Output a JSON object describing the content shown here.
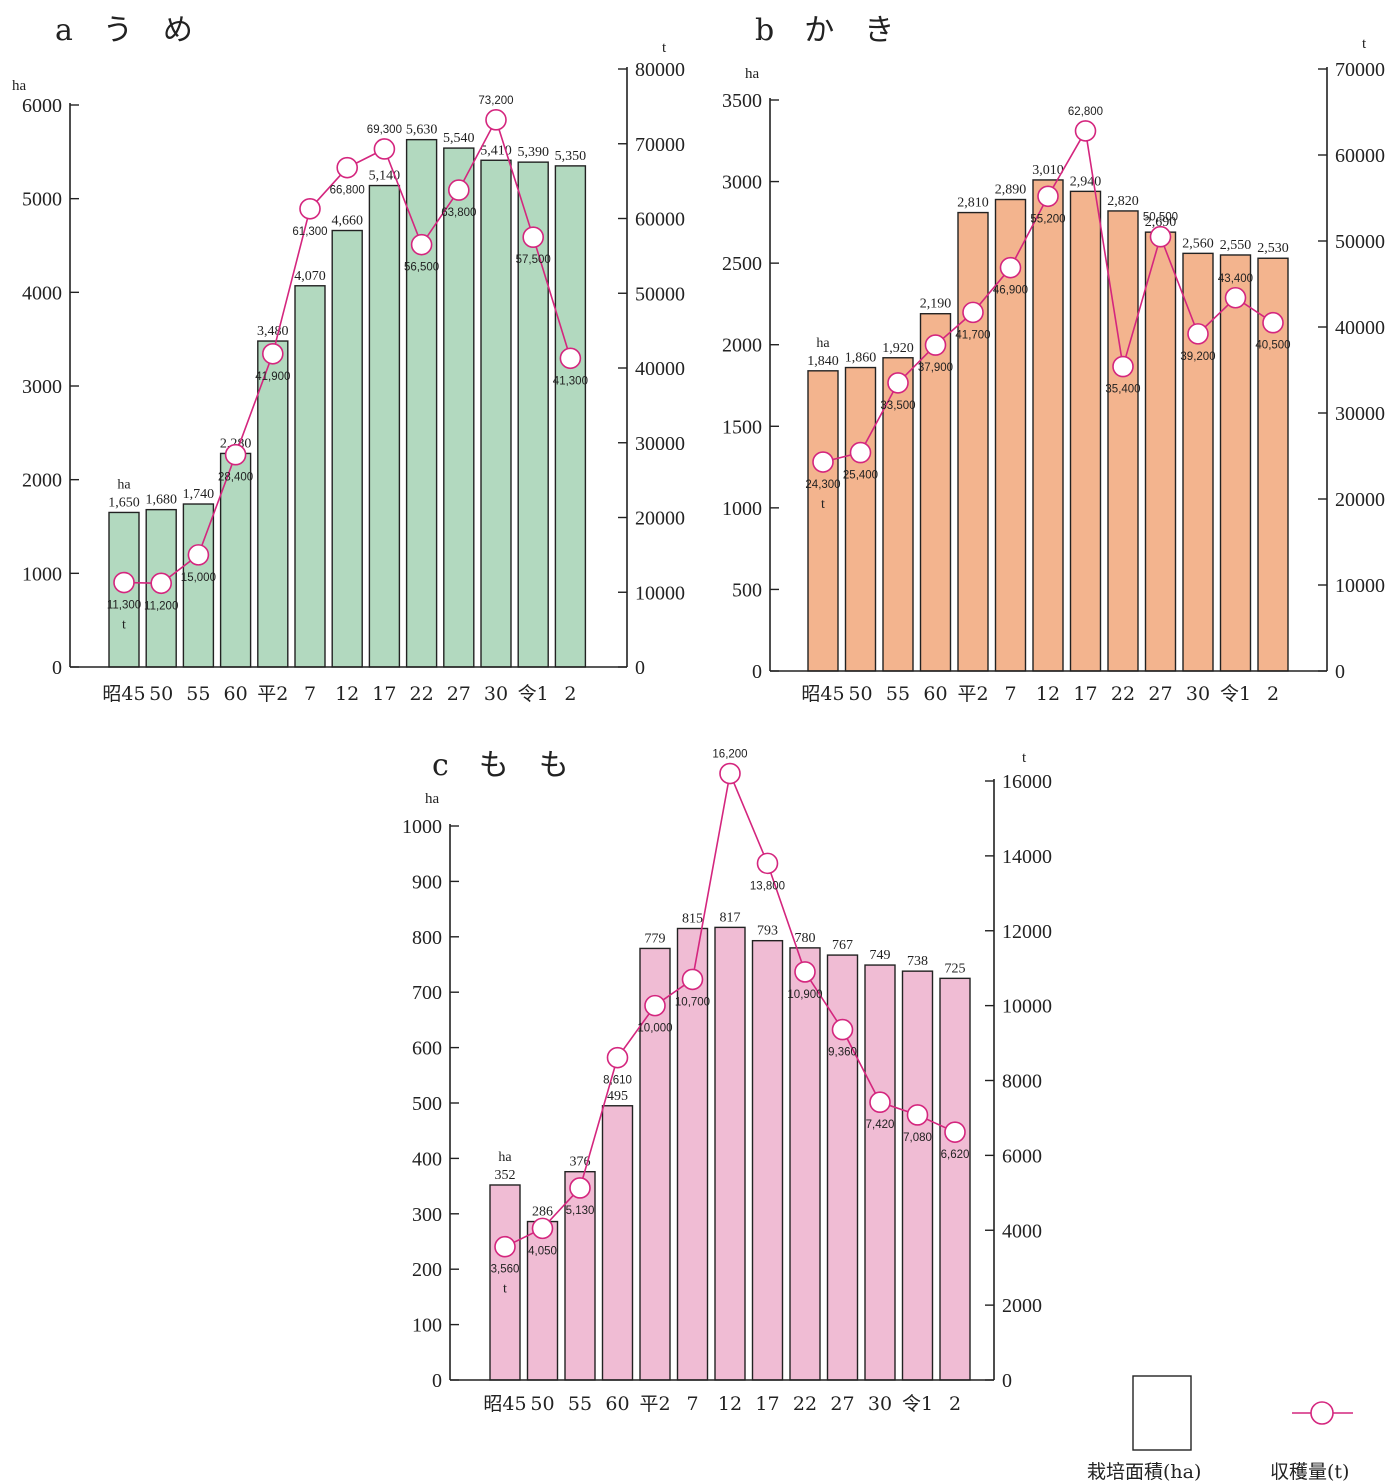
{
  "chart_data": [
    {
      "type": "bar",
      "title": "a　う　め",
      "categories": [
        "昭45",
        "50",
        "55",
        "60",
        "平2",
        "7",
        "12",
        "17",
        "22",
        "27",
        "30",
        "令1",
        "2"
      ],
      "series": [
        {
          "name": "栽培面積(ha)",
          "type": "bar",
          "axis": "left",
          "values": [
            1650,
            1680,
            1740,
            2280,
            3480,
            4070,
            4660,
            5140,
            5630,
            5540,
            5410,
            5390,
            5350
          ],
          "labels": [
            "1,650",
            "1,680",
            "1,740",
            "2,280",
            "3,480",
            "4,070",
            "4,660",
            "5,140",
            "5,630",
            "5,540",
            "5,410",
            "5,390",
            "5,350"
          ]
        },
        {
          "name": "収穫量(t)",
          "type": "line",
          "axis": "right",
          "values": [
            11300,
            11200,
            15000,
            28400,
            41900,
            61300,
            66800,
            69300,
            56500,
            63800,
            73200,
            57500,
            41300
          ],
          "labels": [
            "11,300",
            "11,200",
            "15,000",
            "28,400",
            "41,900",
            "61,300",
            "66,800",
            "69,300",
            "56,500",
            "63,800",
            "73,200",
            "57,500",
            "41,300"
          ]
        }
      ],
      "ylabel": "ha",
      "y2label": "t",
      "ylim": [
        0,
        6000
      ],
      "y2lim": [
        0,
        80000
      ],
      "yticks": [
        "0",
        "1000",
        "2000",
        "3000",
        "4000",
        "5000",
        "6000"
      ],
      "y2ticks": [
        "0",
        "10000",
        "20000",
        "30000",
        "40000",
        "50000",
        "60000",
        "70000",
        "80000"
      ],
      "bar_unit_note": "ha",
      "line_unit_note": "t",
      "bar_color": "#b2d9bf"
    },
    {
      "type": "bar",
      "title": "b　か　き",
      "categories": [
        "昭45",
        "50",
        "55",
        "60",
        "平2",
        "7",
        "12",
        "17",
        "22",
        "27",
        "30",
        "令1",
        "2"
      ],
      "series": [
        {
          "name": "栽培面積(ha)",
          "type": "bar",
          "axis": "left",
          "values": [
            1840,
            1860,
            1920,
            2190,
            2810,
            2890,
            3010,
            2940,
            2820,
            2690,
            2560,
            2550,
            2530
          ],
          "labels": [
            "1,840",
            "1,860",
            "1,920",
            "2,190",
            "2,810",
            "2,890",
            "3,010",
            "2,940",
            "2,820",
            "2,690",
            "2,560",
            "2,550",
            "2,530"
          ]
        },
        {
          "name": "収穫量(t)",
          "type": "line",
          "axis": "right",
          "values": [
            24300,
            25400,
            33500,
            37900,
            41700,
            46900,
            55200,
            62800,
            35400,
            50500,
            39200,
            43400,
            40500
          ],
          "labels": [
            "24,300",
            "25,400",
            "33,500",
            "37,900",
            "41,700",
            "46,900",
            "55,200",
            "62,800",
            "35,400",
            "50,500",
            "39,200",
            "43,400",
            "40,500"
          ]
        }
      ],
      "ylabel": "ha",
      "y2label": "t",
      "ylim": [
        0,
        3500
      ],
      "y2lim": [
        0,
        70000
      ],
      "yticks": [
        "0",
        "500",
        "1000",
        "1500",
        "2000",
        "2500",
        "3000",
        "3500"
      ],
      "y2ticks": [
        "0",
        "10000",
        "20000",
        "30000",
        "40000",
        "50000",
        "60000",
        "70000"
      ],
      "bar_unit_note": "ha",
      "line_unit_note": "t",
      "bar_color": "#f3b48e"
    },
    {
      "type": "bar",
      "title": "c　も　も",
      "categories": [
        "昭45",
        "50",
        "55",
        "60",
        "平2",
        "7",
        "12",
        "17",
        "22",
        "27",
        "30",
        "令1",
        "2"
      ],
      "series": [
        {
          "name": "栽培面積(ha)",
          "type": "bar",
          "axis": "left",
          "values": [
            352,
            286,
            376,
            495,
            779,
            815,
            817,
            793,
            780,
            767,
            749,
            738,
            725
          ],
          "labels": [
            "352",
            "286",
            "376",
            "495",
            "779",
            "815",
            "817",
            "793",
            "780",
            "767",
            "749",
            "738",
            "725"
          ]
        },
        {
          "name": "収穫量(t)",
          "type": "line",
          "axis": "right",
          "values": [
            3560,
            4050,
            5130,
            8610,
            10000,
            10700,
            16200,
            13800,
            10900,
            9360,
            7420,
            7080,
            6620
          ],
          "labels": [
            "3,560",
            "4,050",
            "5,130",
            "8,610",
            "10,000",
            "10,700",
            "16,200",
            "13,800",
            "10,900",
            "9,360",
            "7,420",
            "7,080",
            "6,620"
          ]
        }
      ],
      "ylabel": "ha",
      "y2label": "t",
      "ylim": [
        0,
        1000
      ],
      "y2lim": [
        0,
        16000
      ],
      "yticks": [
        "0",
        "100",
        "200",
        "300",
        "400",
        "500",
        "600",
        "700",
        "800",
        "900",
        "1000"
      ],
      "y2ticks": [
        "0",
        "2000",
        "4000",
        "6000",
        "8000",
        "10000",
        "12000",
        "14000",
        "16000"
      ],
      "bar_unit_note": "ha",
      "line_unit_note": "t",
      "bar_color": "#f0bcd4"
    }
  ],
  "legend": {
    "bar_label": "栽培面積(ha)",
    "line_label": "収穫量(t)",
    "line_color": "#d4267e"
  }
}
